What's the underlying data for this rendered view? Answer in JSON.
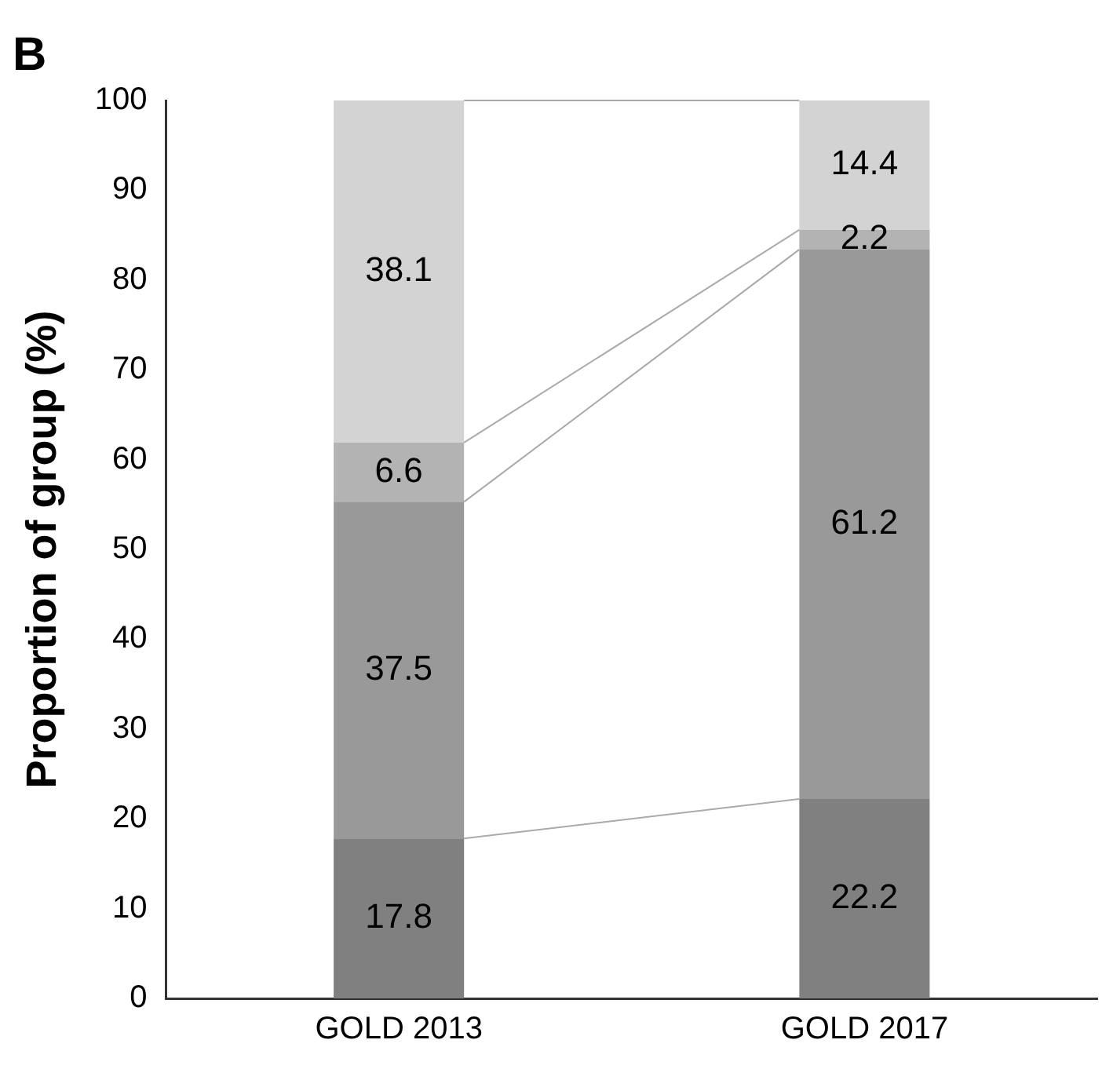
{
  "chart_data": {
    "type": "bar",
    "title": "B",
    "ylabel": "Proportion of group (%)",
    "categories": [
      "GOLD 2013",
      "GOLD 2017"
    ],
    "stacked": true,
    "data_labels": true,
    "grid": false,
    "legend": false,
    "series": [
      {
        "color": "#808080",
        "values": [
          17.8,
          22.2
        ]
      },
      {
        "color": "#999999",
        "values": [
          37.5,
          61.2
        ]
      },
      {
        "color": "#b3b3b3",
        "values": [
          6.6,
          2.2
        ]
      },
      {
        "color": "#d3d3d3",
        "values": [
          38.1,
          14.4
        ]
      }
    ],
    "ylim": [
      0,
      100
    ],
    "yticks": [
      0,
      10,
      20,
      30,
      40,
      50,
      60,
      70,
      80,
      90,
      100
    ]
  }
}
